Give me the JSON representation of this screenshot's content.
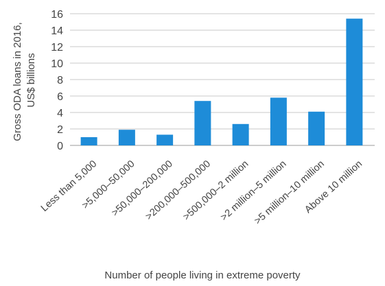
{
  "chart_data": {
    "type": "bar",
    "title": "",
    "xlabel": "Number of people living in extreme poverty",
    "ylabel": "Gross ODA loans in 2016, US$ billions",
    "ylabel_lines": [
      "Gross ODA loans in 2016,",
      "US$ billions"
    ],
    "categories": [
      "Less than 5,000",
      ">5,000–50,000",
      ">50,000–200,000",
      ">200,000–500,000",
      ">500,000–2 million",
      ">2 million–5 million",
      ">5 million–10 million",
      "Above 10 million"
    ],
    "values": [
      1.0,
      1.9,
      1.3,
      5.4,
      2.6,
      5.8,
      4.1,
      15.4
    ],
    "ylim": [
      0,
      16
    ],
    "yticks": [
      0,
      2,
      4,
      6,
      8,
      10,
      12,
      14,
      16
    ],
    "grid": true,
    "legend": "none",
    "colors": {
      "bar": "#1E8CD8",
      "grid": "#c8c8c8",
      "axis": "#999999",
      "text": "#444444"
    }
  }
}
